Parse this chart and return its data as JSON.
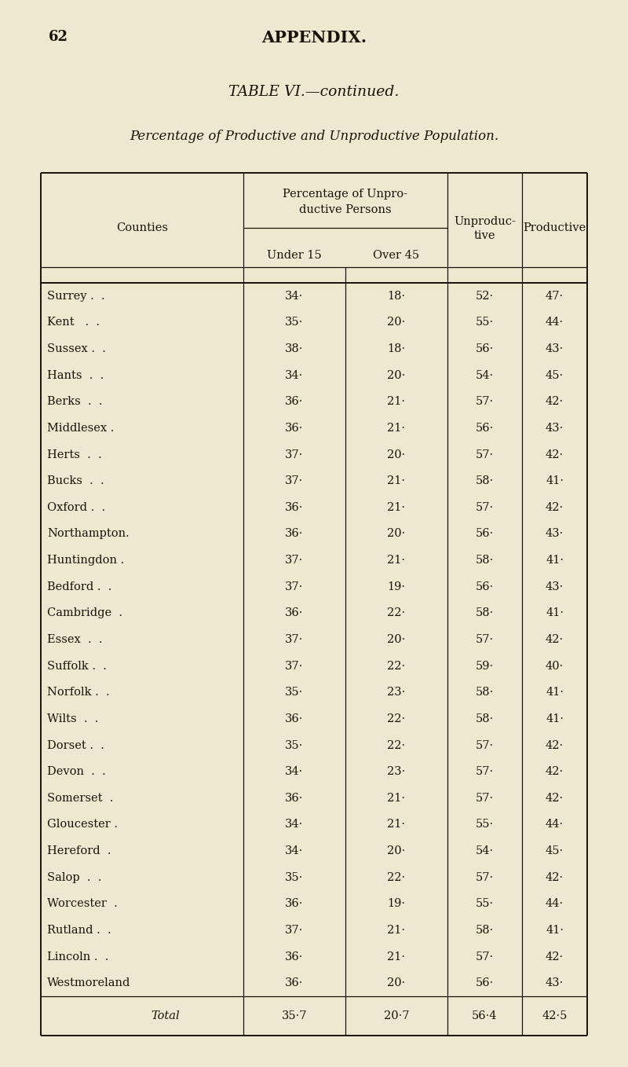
{
  "page_number": "62",
  "page_header": "APPENDIX.",
  "table_title": "TABLE VI.—continued.",
  "subtitle": "Percentage of Productive and Unproductive Population.",
  "background_color": "#EDE8D0",
  "text_color": "#1a1208",
  "rows": [
    [
      "Surrey .  .",
      "34·",
      "18·",
      "52·",
      "47·"
    ],
    [
      "Kent   .  .",
      "35·",
      "20·",
      "55·",
      "44·"
    ],
    [
      "Sussex .  .",
      "38·",
      "18·",
      "56·",
      "43·"
    ],
    [
      "Hants  .  .",
      "34·",
      "20·",
      "54·",
      "45·"
    ],
    [
      "Berks  .  .",
      "36·",
      "21·",
      "57·",
      "42·"
    ],
    [
      "Middlesex .",
      "36·",
      "21·",
      "56·",
      "43·"
    ],
    [
      "Herts  .  .",
      "37·",
      "20·",
      "57·",
      "42·"
    ],
    [
      "Bucks  .  .",
      "37·",
      "21·",
      "58·",
      "41·"
    ],
    [
      "Oxford .  .",
      "36·",
      "21·",
      "57·",
      "42·"
    ],
    [
      "Northampton.",
      "36·",
      "20·",
      "56·",
      "43·"
    ],
    [
      "Huntingdon .",
      "37·",
      "21·",
      "58·",
      "41·"
    ],
    [
      "Bedford .  .",
      "37·",
      "19·",
      "56·",
      "43·"
    ],
    [
      "Cambridge  .",
      "36·",
      "22·",
      "58·",
      "41·"
    ],
    [
      "Essex  .  .",
      "37·",
      "20·",
      "57·",
      "42·"
    ],
    [
      "Suffolk .  .",
      "37·",
      "22·",
      "59·",
      "40·"
    ],
    [
      "Norfolk .  .",
      "35·",
      "23·",
      "58·",
      "41·"
    ],
    [
      "Wilts  .  .",
      "36·",
      "22·",
      "58·",
      "41·"
    ],
    [
      "Dorset .  .",
      "35·",
      "22·",
      "57·",
      "42·"
    ],
    [
      "Devon  .  .",
      "34·",
      "23·",
      "57·",
      "42·"
    ],
    [
      "Somerset  .",
      "36·",
      "21·",
      "57·",
      "42·"
    ],
    [
      "Gloucester .",
      "34·",
      "21·",
      "55·",
      "44·"
    ],
    [
      "Hereford  .",
      "34·",
      "20·",
      "54·",
      "45·"
    ],
    [
      "Salop  .  .",
      "35·",
      "22·",
      "57·",
      "42·"
    ],
    [
      "Worcester  .",
      "36·",
      "19·",
      "55·",
      "44·"
    ],
    [
      "Rutland .  .",
      "37·",
      "21·",
      "58·",
      "41·"
    ],
    [
      "Lincoln .  .",
      "36·",
      "21·",
      "57·",
      "42·"
    ],
    [
      "Westmoreland",
      "36·",
      "20·",
      "56·",
      "43·"
    ]
  ],
  "total_row": [
    "Total",
    "35·7",
    "20·7",
    "56·4",
    "42·5"
  ],
  "figsize": [
    8.0,
    13.58
  ],
  "dpi": 100
}
